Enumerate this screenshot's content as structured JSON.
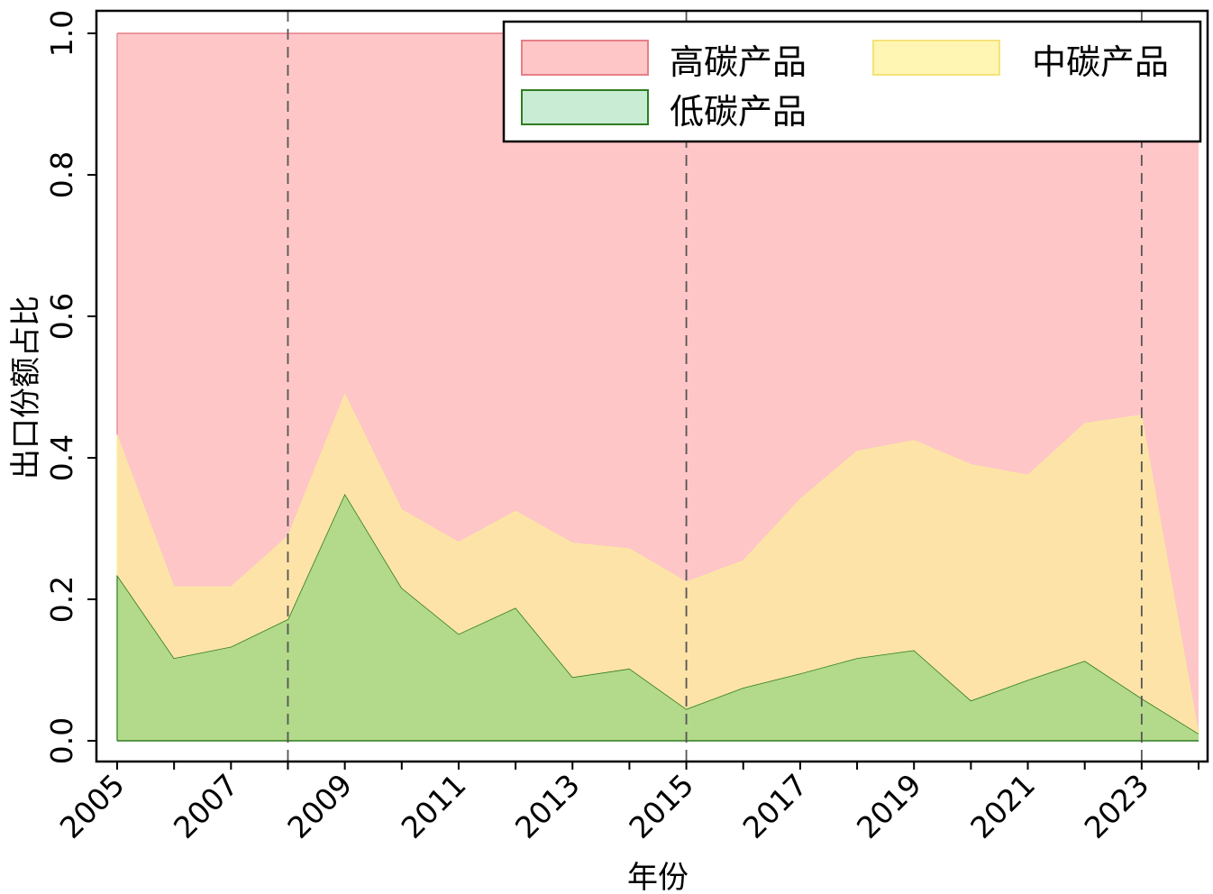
{
  "chart_data": {
    "type": "area",
    "stacked": true,
    "xlabel": "年份",
    "ylabel": "出口份额占比",
    "ylim": [
      0,
      1
    ],
    "xlim": [
      2005,
      2024
    ],
    "y_ticks": [
      "0.0",
      "0.2",
      "0.4",
      "0.6",
      "0.8",
      "1.0"
    ],
    "x_ticks": [
      "2005",
      "2007",
      "2009",
      "2011",
      "2013",
      "2015",
      "2017",
      "2019",
      "2021",
      "2023"
    ],
    "x": [
      2005,
      2006,
      2007,
      2008,
      2009,
      2010,
      2011,
      2012,
      2013,
      2014,
      2015,
      2016,
      2017,
      2018,
      2019,
      2020,
      2021,
      2022,
      2023,
      2024
    ],
    "series": [
      {
        "name": "低碳产品",
        "color": "#b3d98a",
        "line_color": "#2e7d1f",
        "values": [
          0.234,
          0.117,
          0.133,
          0.172,
          0.349,
          0.216,
          0.151,
          0.188,
          0.09,
          0.102,
          0.045,
          0.075,
          0.095,
          0.117,
          0.128,
          0.057,
          0.086,
          0.113,
          0.06,
          0.01
        ]
      },
      {
        "name": "中碳产品",
        "color": "#fde3a7",
        "line_color": "#f7ee9c",
        "values": [
          0.199,
          0.101,
          0.085,
          0.118,
          0.142,
          0.111,
          0.13,
          0.137,
          0.19,
          0.17,
          0.18,
          0.18,
          0.247,
          0.293,
          0.297,
          0.334,
          0.29,
          0.336,
          0.401,
          0.002
        ]
      },
      {
        "name": "高碳产品",
        "color": "#ffc6c8",
        "line_color": "#e67f86",
        "values": [
          0.567,
          0.782,
          0.782,
          0.71,
          0.509,
          0.673,
          0.719,
          0.675,
          0.72,
          0.728,
          0.775,
          0.745,
          0.658,
          0.59,
          0.575,
          0.609,
          0.624,
          0.551,
          0.539,
          0.988
        ]
      }
    ],
    "reference_lines": [
      2008,
      2015,
      2023
    ],
    "legend": {
      "placement": "top-right",
      "entries": [
        {
          "label": "高碳产品",
          "color": "#ffc6c8",
          "edge": "#e67f86"
        },
        {
          "label": "中碳产品",
          "color": "#fff6b3",
          "edge": "#f5e27a"
        },
        {
          "label": "低碳产品",
          "color": "#c9ecd4",
          "edge": "#2e7d1f"
        }
      ]
    },
    "grid": false
  }
}
